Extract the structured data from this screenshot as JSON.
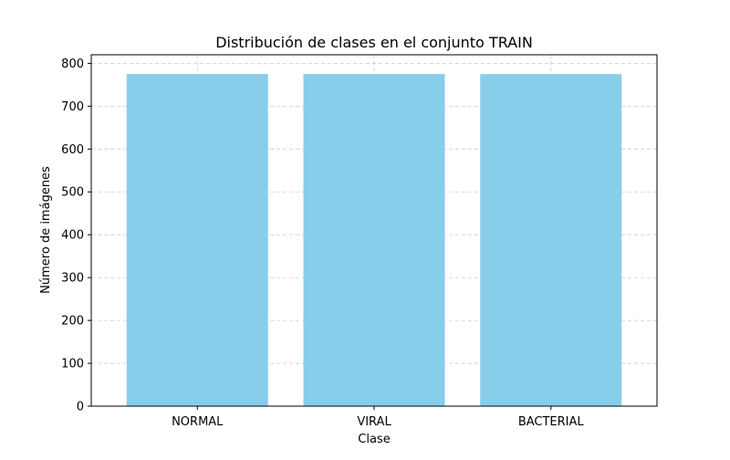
{
  "chart_data": {
    "type": "bar",
    "title": "Distribución de clases en el conjunto TRAIN",
    "xlabel": "Clase",
    "ylabel": "Número de imágenes",
    "categories": [
      "NORMAL",
      "VIRAL",
      "BACTERIAL"
    ],
    "values": [
      775,
      775,
      775
    ],
    "ylim": [
      0,
      820
    ],
    "yticks": [
      0,
      100,
      200,
      300,
      400,
      500,
      600,
      700,
      800
    ],
    "grid": true,
    "grid_style": "dashed",
    "bar_color": "#87ceeb",
    "legend": "none"
  }
}
